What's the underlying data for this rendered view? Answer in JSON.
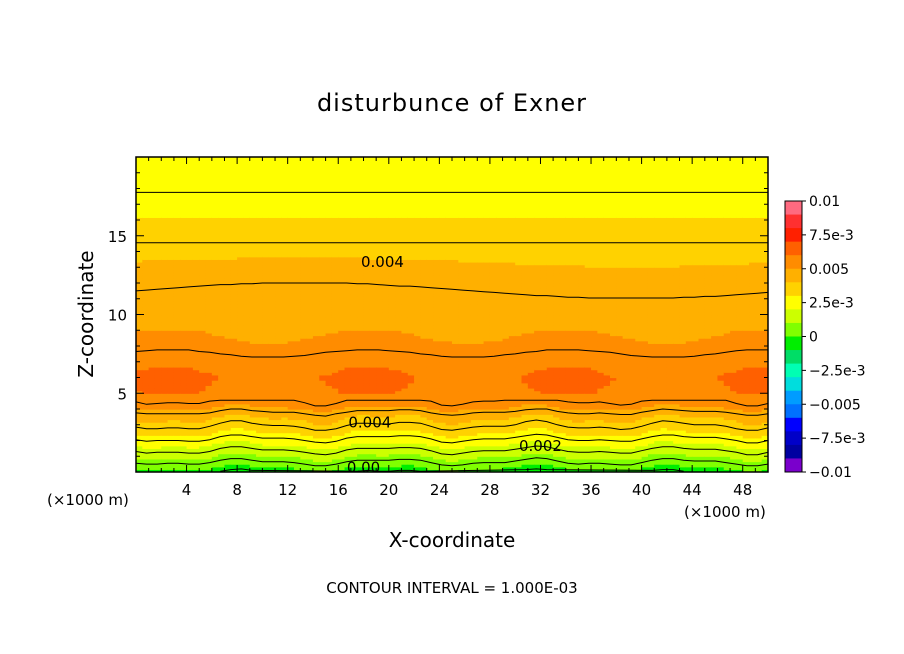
{
  "chart_data": {
    "type": "heatmap",
    "title": "disturbunce of Exner",
    "xlabel": "X-coordinate",
    "ylabel": "Z-coordinate",
    "x_unit": "(×1000 m)",
    "xlim": [
      0,
      50
    ],
    "ylim": [
      0,
      20
    ],
    "x_ticks": [
      4,
      8,
      12,
      16,
      20,
      24,
      28,
      32,
      36,
      40,
      44,
      48
    ],
    "x_tick_labels": [
      "4",
      "8",
      "12",
      "16",
      "20",
      "24",
      "28",
      "32",
      "36",
      "40",
      "44",
      "48"
    ],
    "y_ticks": [
      5,
      10,
      15
    ],
    "y_tick_labels": [
      "5",
      "10",
      "15"
    ],
    "footer": "CONTOUR INTERVAL = 1.000E-03",
    "colorbar": {
      "min": -0.01,
      "max": 0.01,
      "step": 0.0025,
      "labels": [
        "0.01",
        "7.5e-3",
        "0.005",
        "2.5e-3",
        "0",
        "−2.5e-3",
        "−0.005",
        "−7.5e-3",
        "−0.01"
      ],
      "colors": [
        "#ff6a80",
        "#ff3030",
        "#ff2000",
        "#ff6000",
        "#ff8c00",
        "#ffb000",
        "#ffd200",
        "#ffff00",
        "#ccff00",
        "#80ff00",
        "#00ee00",
        "#00dd66",
        "#00ffb3",
        "#00dddd",
        "#009cff",
        "#0070ff",
        "#0000ff",
        "#0000c8",
        "#0000a0",
        "#7a00cc"
      ]
    },
    "contour_labels": [
      {
        "text": "0.004",
        "x": 19.5,
        "z": 13.4
      },
      {
        "text": "0.004",
        "x": 18.5,
        "z": 3.2
      },
      {
        "text": "0.002",
        "x": 32,
        "z": 1.7
      },
      {
        "text": "0.00",
        "x": 18,
        "z": 0.35
      }
    ],
    "profile": {
      "z": [
        0,
        0.6,
        1.2,
        1.8,
        2.4,
        3.0,
        3.6,
        4.2,
        5.0,
        6.0,
        7.0,
        8.0,
        9.0,
        10.0,
        11.0,
        12.0,
        13.4,
        15.0,
        17.0,
        18.5,
        20.0
      ],
      "value": [
        -0.0004,
        0.0005,
        0.0013,
        0.0021,
        0.0029,
        0.0036,
        0.0042,
        0.0052,
        0.0059,
        0.006,
        0.0058,
        0.0052,
        0.0049,
        0.0048,
        0.0046,
        0.0044,
        0.004,
        0.0033,
        0.0028,
        0.0022,
        0.002
      ]
    }
  }
}
